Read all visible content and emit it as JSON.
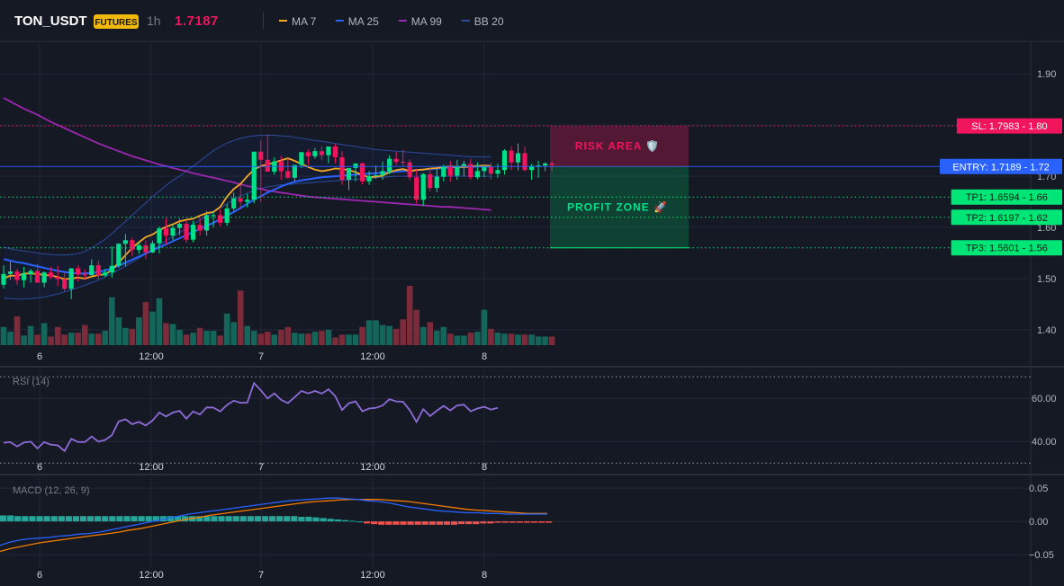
{
  "header": {
    "symbol": "TON_USDT",
    "badge": "FUTURES",
    "interval": "1h",
    "price": "1.7187",
    "legend": [
      {
        "label": "MA 7",
        "color": "#f5a623"
      },
      {
        "label": "MA 25",
        "color": "#2962ff"
      },
      {
        "label": "MA 99",
        "color": "#9c27b0"
      },
      {
        "label": "BB 20",
        "color": "#2b4a9e"
      }
    ]
  },
  "x_axis_labels": [
    "6",
    "12:00",
    "7",
    "12:00",
    "8"
  ],
  "colors": {
    "bg": "#151924",
    "grid": "#232838",
    "up": "#00e08a",
    "down": "#f0155c",
    "vol_up": "#14665a",
    "vol_down": "#7b2b3a",
    "ma7": "#f5a623",
    "ma25": "#2962ff",
    "ma99": "#9c27b0",
    "bb": "#2b4a9e",
    "rsi": "#8e6bd8",
    "macd": "#2962ff",
    "signal": "#f57c00",
    "hist_up": "#26a69a",
    "hist_down": "#ef5350"
  },
  "price_panel": {
    "y_ticks": [
      "1.90",
      "1.80",
      "1.70",
      "1.60",
      "1.50",
      "1.40"
    ],
    "levels": [
      {
        "label": "SL: 1.7983 - 1.80",
        "color": "#f0155c",
        "text": "#ffffff"
      },
      {
        "label": "ENTRY: 1.7189 - 1.72",
        "color": "#2962ff",
        "text": "#ffffff"
      },
      {
        "label": "TP1: 1.6594 - 1.66",
        "color": "#00e676",
        "text": "#0a1a12"
      },
      {
        "label": "TP2: 1.6197 - 1.62",
        "color": "#00e676",
        "text": "#0a1a12"
      },
      {
        "label": "TP3: 1.5601 - 1.56",
        "color": "#00e676",
        "text": "#0a1a12"
      }
    ],
    "risk_label": "RISK AREA 🛡️",
    "profit_label": "PROFIT ZONE 🚀"
  },
  "rsi_panel": {
    "title": "RSI (14)",
    "y_ticks": [
      "60.00",
      "40.00"
    ]
  },
  "macd_panel": {
    "title": "MACD (12, 26, 9)",
    "y_ticks": [
      "0.05",
      "0.00",
      "−0.05"
    ]
  },
  "chart_data": {
    "type": "candlestick",
    "candles": {
      "open": [
        1.488,
        1.509,
        1.514,
        1.497,
        1.509,
        1.515,
        1.492,
        1.512,
        1.503,
        1.499,
        1.48,
        1.52,
        1.508,
        1.507,
        1.526,
        1.506,
        1.512,
        1.525,
        1.568,
        1.575,
        1.556,
        1.565,
        1.551,
        1.569,
        1.598,
        1.584,
        1.599,
        1.607,
        1.576,
        1.605,
        1.594,
        1.624,
        1.624,
        1.609,
        1.637,
        1.657,
        1.65,
        1.654,
        1.748,
        1.732,
        1.709,
        1.729,
        1.71,
        1.697,
        1.722,
        1.747,
        1.739,
        1.749,
        1.741,
        1.758,
        1.737,
        1.693,
        1.716,
        1.725,
        1.69,
        1.7,
        1.702,
        1.71,
        1.734,
        1.728,
        1.727,
        1.698,
        1.654,
        1.704,
        1.677,
        1.699,
        1.719,
        1.701,
        1.72,
        1.724,
        1.698,
        1.71,
        1.718,
        1.705,
        1.712,
        1.75,
        1.727,
        1.745,
        1.712,
        1.72,
        1.721,
        1.725
      ],
      "high": [
        1.526,
        1.533,
        1.519,
        1.523,
        1.519,
        1.529,
        1.514,
        1.523,
        1.525,
        1.512,
        1.517,
        1.526,
        1.518,
        1.538,
        1.535,
        1.519,
        1.563,
        1.569,
        1.587,
        1.58,
        1.571,
        1.575,
        1.574,
        1.602,
        1.618,
        1.605,
        1.617,
        1.614,
        1.613,
        1.619,
        1.632,
        1.632,
        1.635,
        1.646,
        1.668,
        1.682,
        1.666,
        1.668,
        1.77,
        1.782,
        1.737,
        1.74,
        1.735,
        1.72,
        1.747,
        1.752,
        1.755,
        1.758,
        1.752,
        1.763,
        1.749,
        1.716,
        1.722,
        1.727,
        1.71,
        1.721,
        1.729,
        1.741,
        1.748,
        1.752,
        1.733,
        1.715,
        1.706,
        1.715,
        1.714,
        1.723,
        1.73,
        1.732,
        1.73,
        1.734,
        1.727,
        1.721,
        1.726,
        1.725,
        1.753,
        1.758,
        1.764,
        1.758,
        1.724,
        1.73,
        1.727,
        1.729
      ],
      "low": [
        1.481,
        1.498,
        1.488,
        1.483,
        1.492,
        1.496,
        1.483,
        1.499,
        1.485,
        1.475,
        1.46,
        1.494,
        1.497,
        1.505,
        1.498,
        1.503,
        1.502,
        1.521,
        1.524,
        1.544,
        1.548,
        1.538,
        1.55,
        1.549,
        1.567,
        1.575,
        1.585,
        1.57,
        1.571,
        1.584,
        1.584,
        1.6,
        1.602,
        1.603,
        1.632,
        1.635,
        1.639,
        1.647,
        1.649,
        1.717,
        1.703,
        1.693,
        1.695,
        1.69,
        1.716,
        1.722,
        1.734,
        1.732,
        1.725,
        1.725,
        1.683,
        1.673,
        1.69,
        1.684,
        1.683,
        1.695,
        1.693,
        1.704,
        1.722,
        1.72,
        1.692,
        1.646,
        1.642,
        1.67,
        1.669,
        1.69,
        1.689,
        1.693,
        1.7,
        1.693,
        1.694,
        1.698,
        1.694,
        1.697,
        1.703,
        1.712,
        1.711,
        1.71,
        1.693,
        1.697,
        1.71,
        1.71
      ],
      "close": [
        1.509,
        1.514,
        1.497,
        1.509,
        1.515,
        1.492,
        1.512,
        1.503,
        1.499,
        1.48,
        1.52,
        1.508,
        1.507,
        1.526,
        1.506,
        1.512,
        1.525,
        1.568,
        1.575,
        1.556,
        1.565,
        1.551,
        1.569,
        1.598,
        1.584,
        1.599,
        1.607,
        1.576,
        1.605,
        1.594,
        1.624,
        1.624,
        1.609,
        1.637,
        1.657,
        1.65,
        1.654,
        1.748,
        1.732,
        1.709,
        1.729,
        1.71,
        1.697,
        1.722,
        1.747,
        1.739,
        1.749,
        1.741,
        1.758,
        1.737,
        1.693,
        1.716,
        1.725,
        1.69,
        1.7,
        1.702,
        1.71,
        1.734,
        1.728,
        1.727,
        1.698,
        1.654,
        1.704,
        1.677,
        1.699,
        1.719,
        1.701,
        1.72,
        1.724,
        1.698,
        1.71,
        1.718,
        1.705,
        1.712,
        1.75,
        1.727,
        1.745,
        1.712,
        1.72,
        1.721,
        1.725,
        1.722
      ],
      "volume": [
        19,
        14,
        30,
        10,
        20,
        11,
        23,
        9,
        19,
        11,
        13,
        13,
        21,
        12,
        12,
        15,
        50,
        29,
        18,
        17,
        29,
        45,
        35,
        49,
        23,
        22,
        16,
        11,
        13,
        18,
        15,
        15,
        10,
        33,
        24,
        57,
        20,
        15,
        12,
        14,
        11,
        16,
        19,
        13,
        12,
        12,
        14,
        15,
        16,
        8,
        11,
        11,
        11,
        19,
        26,
        26,
        21,
        20,
        17,
        27,
        62,
        37,
        19,
        24,
        15,
        19,
        12,
        10,
        10,
        13,
        14,
        37,
        17,
        13,
        12,
        12,
        11,
        11,
        11,
        9,
        9,
        9
      ],
      "volume_ylim": [
        0,
        62
      ]
    },
    "ma7": [
      1.5,
      1.506,
      1.505,
      1.51,
      1.51,
      1.509,
      1.507,
      1.506,
      1.503,
      1.499,
      1.5,
      1.502,
      1.5,
      1.504,
      1.507,
      1.508,
      1.517,
      1.531,
      1.546,
      1.56,
      1.571,
      1.581,
      1.586,
      1.595,
      1.601,
      1.606,
      1.612,
      1.615,
      1.617,
      1.623,
      1.628,
      1.63,
      1.64,
      1.66,
      1.675,
      1.685,
      1.7,
      1.713,
      1.72,
      1.723,
      1.727,
      1.731,
      1.735,
      1.73,
      1.724,
      1.718,
      1.713,
      1.71,
      1.712,
      1.715,
      1.714,
      1.712,
      1.708,
      1.702,
      1.698,
      1.699,
      1.701,
      1.708,
      1.712,
      1.714,
      1.71,
      1.712,
      1.713,
      1.715,
      1.716,
      1.718,
      1.719,
      1.718,
      1.718,
      1.719,
      1.72,
      1.721,
      1.72
    ],
    "ma25": [
      1.538,
      1.535,
      1.532,
      1.53,
      1.527,
      1.524,
      1.521,
      1.518,
      1.515,
      1.513,
      1.511,
      1.51,
      1.51,
      1.511,
      1.513,
      1.516,
      1.52,
      1.525,
      1.531,
      1.537,
      1.543,
      1.549,
      1.555,
      1.561,
      1.567,
      1.573,
      1.579,
      1.585,
      1.591,
      1.597,
      1.603,
      1.609,
      1.616,
      1.623,
      1.63,
      1.638,
      1.646,
      1.654,
      1.661,
      1.668,
      1.674,
      1.68,
      1.685,
      1.689,
      1.692,
      1.694,
      1.696,
      1.698,
      1.699,
      1.7,
      1.701,
      1.702,
      1.703,
      1.704,
      1.705,
      1.706,
      1.707,
      1.708,
      1.709,
      1.71,
      1.711,
      1.712,
      1.713,
      1.714,
      1.715,
      1.716,
      1.717,
      1.718,
      1.718,
      1.718,
      1.719,
      1.719,
      1.719
    ],
    "ma99": [
      1.853,
      1.846,
      1.839,
      1.832,
      1.826,
      1.82,
      1.813,
      1.806,
      1.8,
      1.794,
      1.788,
      1.782,
      1.776,
      1.77,
      1.764,
      1.759,
      1.754,
      1.749,
      1.744,
      1.739,
      1.735,
      1.731,
      1.727,
      1.723,
      1.72,
      1.716,
      1.713,
      1.71,
      1.706,
      1.703,
      1.7,
      1.697,
      1.694,
      1.691,
      1.688,
      1.684,
      1.681,
      1.678,
      1.675,
      1.672,
      1.67,
      1.668,
      1.666,
      1.664,
      1.662,
      1.66,
      1.659,
      1.658,
      1.657,
      1.656,
      1.655,
      1.654,
      1.653,
      1.652,
      1.651,
      1.65,
      1.649,
      1.648,
      1.647,
      1.646,
      1.645,
      1.644,
      1.643,
      1.642,
      1.641,
      1.64,
      1.64,
      1.639,
      1.638,
      1.637,
      1.636,
      1.635,
      1.634
    ],
    "bb_upper": [
      1.562,
      1.558,
      1.556,
      1.554,
      1.552,
      1.55,
      1.548,
      1.547,
      1.546,
      1.546,
      1.547,
      1.549,
      1.553,
      1.56,
      1.568,
      1.577,
      1.588,
      1.6,
      1.612,
      1.624,
      1.636,
      1.648,
      1.66,
      1.671,
      1.682,
      1.692,
      1.7,
      1.71,
      1.72,
      1.73,
      1.74,
      1.75,
      1.758,
      1.765,
      1.77,
      1.774,
      1.777,
      1.779,
      1.78,
      1.78,
      1.78,
      1.779,
      1.778,
      1.776,
      1.774,
      1.772,
      1.77,
      1.768,
      1.766,
      1.764,
      1.762,
      1.76,
      1.758,
      1.756,
      1.754,
      1.752,
      1.751,
      1.75,
      1.749,
      1.748,
      1.747,
      1.746,
      1.745,
      1.744,
      1.743,
      1.742,
      1.741,
      1.74,
      1.739,
      1.738,
      1.738,
      1.738,
      1.738
    ],
    "bb_lower": [
      1.462,
      1.461,
      1.46,
      1.46,
      1.461,
      1.462,
      1.464,
      1.467,
      1.47,
      1.474,
      1.478,
      1.482,
      1.487,
      1.492,
      1.497,
      1.503,
      1.51,
      1.517,
      1.524,
      1.532,
      1.54,
      1.548,
      1.556,
      1.565,
      1.574,
      1.582,
      1.59,
      1.598,
      1.606,
      1.614,
      1.622,
      1.63,
      1.638,
      1.646,
      1.654,
      1.661,
      1.667,
      1.672,
      1.676,
      1.679,
      1.681,
      1.683,
      1.684,
      1.685,
      1.686,
      1.687,
      1.688,
      1.689,
      1.69,
      1.691,
      1.692,
      1.693,
      1.694,
      1.695,
      1.696,
      1.697,
      1.698,
      1.699,
      1.7,
      1.7,
      1.7,
      1.7,
      1.7,
      1.7,
      1.7,
      1.7,
      1.7,
      1.7,
      1.7,
      1.7,
      1.7,
      1.7,
      1.7
    ],
    "price_ylim": [
      1.37,
      1.96
    ],
    "sl": 1.7983,
    "entry": 1.7189,
    "tp1": 1.6594,
    "tp2": 1.6197,
    "tp3": 1.5601,
    "rsi": [
      39.4,
      39.7,
      37.7,
      39.5,
      39.9,
      36.8,
      39.7,
      38.5,
      38.2,
      35.6,
      41.2,
      39.8,
      39.7,
      42.3,
      39.9,
      40.7,
      42.9,
      49.3,
      50.3,
      48.0,
      49.1,
      47.4,
      49.7,
      53.4,
      51.6,
      53.4,
      54.2,
      50.6,
      53.9,
      52.5,
      55.8,
      55.7,
      53.9,
      56.9,
      58.9,
      57.9,
      58.0,
      67.1,
      63.7,
      59.9,
      62.3,
      59.3,
      57.8,
      60.6,
      63.4,
      62.3,
      63.4,
      62.2,
      64.2,
      61.0,
      54.6,
      57.7,
      58.6,
      54.0,
      55.3,
      55.6,
      56.7,
      59.6,
      58.6,
      58.4,
      54.5,
      49.1,
      55.0,
      51.8,
      54.3,
      56.5,
      54.4,
      56.7,
      57.1,
      54.0,
      55.3,
      56.1,
      54.8,
      55.6
    ],
    "rsi_ylim": [
      28,
      73
    ],
    "rsi_levels": [
      70,
      30
    ],
    "macd": [
      -0.036,
      -0.031,
      -0.028,
      -0.026,
      -0.025,
      -0.024,
      -0.022,
      -0.021,
      -0.019,
      -0.018,
      -0.016,
      -0.013,
      -0.01,
      -0.007,
      -0.004,
      -0.001,
      0.002,
      0.005,
      0.008,
      0.011,
      0.013,
      0.015,
      0.017,
      0.019,
      0.021,
      0.023,
      0.025,
      0.027,
      0.029,
      0.031,
      0.032,
      0.033,
      0.034,
      0.035,
      0.035,
      0.034,
      0.033,
      0.031,
      0.03,
      0.028,
      0.025,
      0.022,
      0.02,
      0.018,
      0.016,
      0.015,
      0.014,
      0.013,
      0.013,
      0.012,
      0.012,
      0.011,
      0.011,
      0.011,
      0.011,
      0.011
    ],
    "signal": [
      -0.045,
      -0.041,
      -0.038,
      -0.035,
      -0.032,
      -0.03,
      -0.028,
      -0.026,
      -0.024,
      -0.022,
      -0.02,
      -0.018,
      -0.016,
      -0.013,
      -0.011,
      -0.008,
      -0.005,
      -0.002,
      0.001,
      0.004,
      0.006,
      0.009,
      0.011,
      0.013,
      0.015,
      0.017,
      0.019,
      0.021,
      0.023,
      0.025,
      0.027,
      0.029,
      0.03,
      0.031,
      0.032,
      0.033,
      0.033,
      0.033,
      0.033,
      0.032,
      0.031,
      0.03,
      0.028,
      0.026,
      0.024,
      0.022,
      0.02,
      0.018,
      0.017,
      0.016,
      0.015,
      0.014,
      0.013,
      0.012,
      0.012,
      0.012
    ],
    "histogram": [
      0.009,
      0.009,
      0.008,
      0.008,
      0.008,
      0.008,
      0.008,
      0.008,
      0.008,
      0.008,
      0.008,
      0.008,
      0.008,
      0.008,
      0.008,
      0.008,
      0.008,
      0.008,
      0.008,
      0.008,
      0.008,
      0.008,
      0.008,
      0.008,
      0.008,
      0.008,
      0.008,
      0.008,
      0.008,
      0.008,
      0.008,
      0.008,
      0.008,
      0.008,
      0.008,
      0.008,
      0.008,
      0.008,
      0.008,
      0.008,
      0.008,
      0.007,
      0.007,
      0.006,
      0.005,
      0.004,
      0.003,
      0.002,
      0.001,
      0.0,
      -0.003,
      -0.004,
      -0.005,
      -0.005,
      -0.005,
      -0.005,
      -0.005,
      -0.005,
      -0.005,
      -0.005,
      -0.005,
      -0.005,
      -0.005,
      -0.004,
      -0.004,
      -0.004,
      -0.003,
      -0.003,
      -0.002,
      -0.002,
      -0.002,
      -0.002,
      -0.002,
      -0.002,
      -0.002,
      -0.002
    ],
    "macd_ylim": [
      -0.07,
      0.065
    ]
  }
}
